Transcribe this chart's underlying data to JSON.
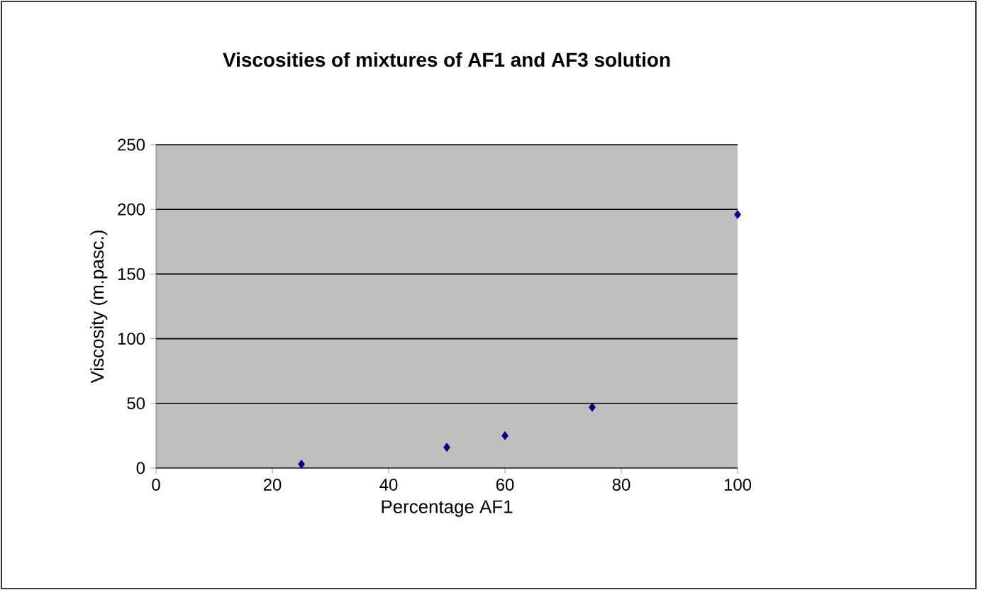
{
  "chart_data": {
    "type": "scatter",
    "title": "Viscosities of mixtures of AF1 and AF3 solution",
    "xlabel": "Percentage AF1",
    "ylabel": "Viscosity (m.pasc.)",
    "x": [
      25,
      50,
      60,
      75,
      100
    ],
    "series": [
      {
        "color": "#000080",
        "values": [
          3,
          16,
          25,
          47,
          196
        ]
      }
    ],
    "xlim": [
      0,
      100
    ],
    "xticks": [
      0,
      20,
      40,
      60,
      80,
      100
    ],
    "ylim": [
      0,
      250
    ],
    "yticks": [
      0,
      50,
      100,
      150,
      200,
      250
    ],
    "grid": "y",
    "marker": "diamond"
  }
}
